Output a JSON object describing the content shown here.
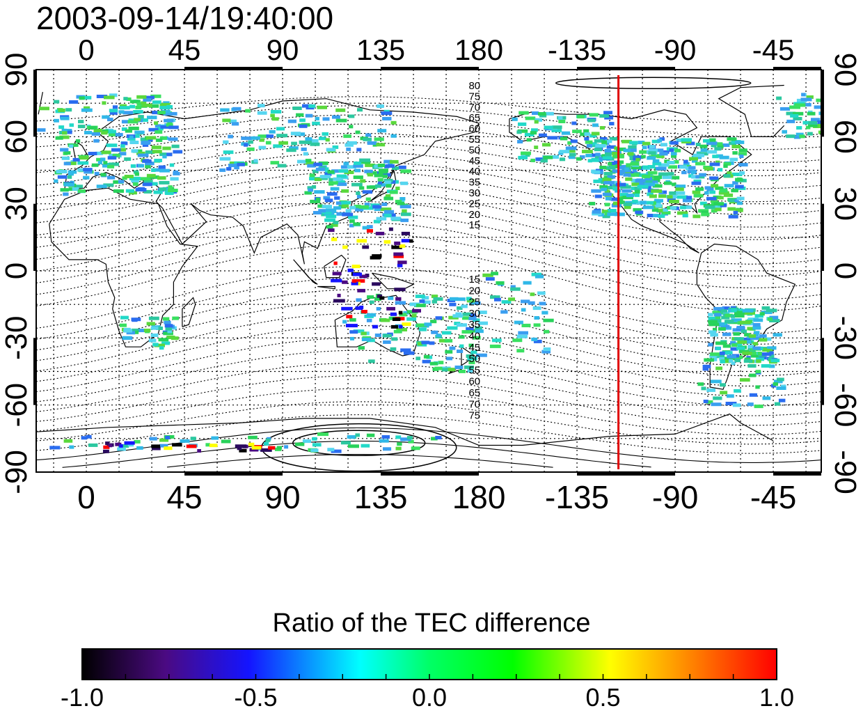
{
  "title": "2003-09-14/19:40:00",
  "map": {
    "top_lon_labels": [
      "0",
      "45",
      "90",
      "135",
      "180",
      "-135",
      "-90",
      "-45"
    ],
    "bottom_lon_labels": [
      "0",
      "45",
      "90",
      "135",
      "180",
      "-135",
      "-90",
      "-45"
    ],
    "left_lat_labels": [
      "90",
      "60",
      "30",
      "0",
      "-30",
      "-60",
      "-90"
    ],
    "right_lat_labels": [
      "90",
      "60",
      "30",
      "0",
      "-30",
      "-60",
      "-90"
    ],
    "contour_labels_north": [
      "80",
      "75",
      "70",
      "65",
      "60",
      "55",
      "50",
      "45",
      "40",
      "35",
      "30",
      "25",
      "20",
      "15"
    ],
    "contour_labels_south": [
      "15",
      "20",
      "25",
      "30",
      "35",
      "40",
      "45",
      "50",
      "55",
      "60",
      "65",
      "70",
      "75"
    ],
    "marker_line_lon": -116,
    "marker_line_color": "#e00000"
  },
  "colorbar": {
    "title": "Ratio of the TEC difference",
    "tick_labels": [
      "-1.0",
      "-0.5",
      "0.0",
      "0.5",
      "1.0"
    ],
    "colors": [
      "#000000",
      "#4b0a82",
      "#1414ff",
      "#00ffff",
      "#00ff00",
      "#ffff00",
      "#ff0000"
    ]
  }
}
